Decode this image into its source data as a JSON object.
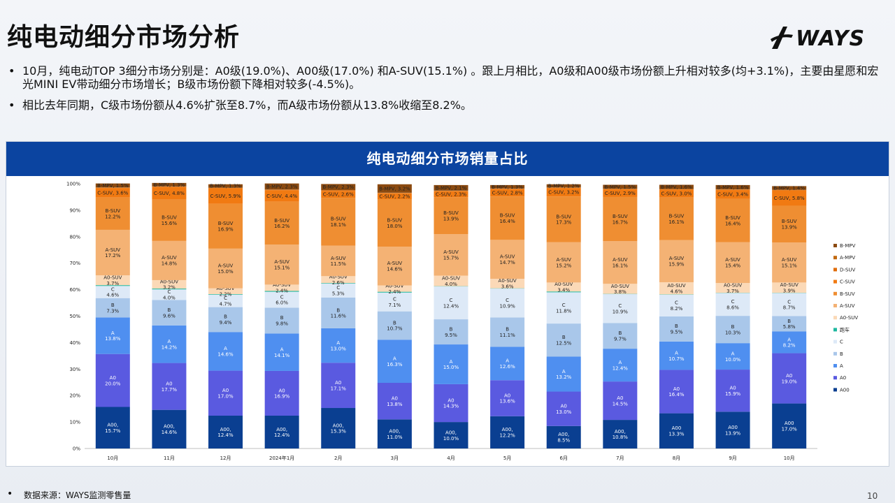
{
  "page": {
    "title": "纯电动细分市场分析",
    "logo_text": "WAYS",
    "bullets": [
      "10月，纯电动TOP 3细分市场分别是：A0级(19.0%)、A00级(17.0%) 和A-SUV(15.1%) 。跟上月相比，A0级和A00级市场份额上升相对较多(均+3.1%)，主要由星愿和宏光MINI EV带动细分市场增长；B级市场份额下降相对较多(-4.5%)。",
      "相比去年同期，C级市场份额从4.6%扩张至8.7%，而A级市场份额从13.8%收缩至8.2%。"
    ],
    "footnote": "数据来源：WAYS监测零售量",
    "page_number": "10"
  },
  "chart_data": {
    "type": "bar",
    "stacked": true,
    "title": "纯电动细分市场销量占比",
    "categories": [
      "10月",
      "11月",
      "12月",
      "2024年1月",
      "2月",
      "3月",
      "4月",
      "5月",
      "6月",
      "7月",
      "8月",
      "9月",
      "10月"
    ],
    "ylim": [
      0,
      100
    ],
    "yticks": [
      "0%",
      "10%",
      "20%",
      "30%",
      "40%",
      "50%",
      "60%",
      "70%",
      "80%",
      "90%",
      "100%"
    ],
    "legend_position": "right",
    "series": [
      {
        "name": "A00",
        "color": "#0a3f91",
        "values": [
          15.7,
          14.6,
          12.4,
          12.4,
          15.3,
          11.0,
          10.0,
          12.2,
          8.5,
          10.8,
          13.3,
          13.9,
          17.0
        ],
        "labels": [
          "A00,\n15.7%",
          "A00,\n14.6%",
          "A00,\n12.4%",
          "A00,\n12.4%",
          "A00,\n15.3%",
          "A00,\n11.0%",
          "A00,\n10.0%",
          "A00,\n12.2%",
          "A00,\n8.5%",
          "A00,\n10.8%",
          "A00\n13.3%",
          "A00\n13.9%",
          "A00\n17.0%"
        ]
      },
      {
        "name": "A0",
        "color": "#5a5ae0",
        "values": [
          20.0,
          17.7,
          17.0,
          16.9,
          17.1,
          13.8,
          14.3,
          13.6,
          13.0,
          14.5,
          16.4,
          15.9,
          19.0
        ],
        "labels": [
          "A0\n20.0%",
          "A0\n17.7%",
          "A0\n17.0%",
          "A0\n16.9%",
          "A0\n17.1%",
          "A0\n13.8%",
          "A0\n14.3%",
          "A0\n13.6%",
          "A0\n13.0%",
          "A0\n14.5%",
          "A0\n16.4%",
          "A0\n15.9%",
          "A0\n19.0%"
        ]
      },
      {
        "name": "A",
        "color": "#4f8ff0",
        "values": [
          13.8,
          14.2,
          14.6,
          14.1,
          13.0,
          16.3,
          15.0,
          12.6,
          13.2,
          12.4,
          10.7,
          10.0,
          8.2
        ],
        "labels": [
          "A\n13.8%",
          "A\n14.2%",
          "A\n14.6%",
          "A\n14.1%",
          "A\n13.0%",
          "A\n16.3%",
          "A\n15.0%",
          "A\n12.6%",
          "A\n13.2%",
          "A\n12.4%",
          "A\n10.7%",
          "A\n10.0%",
          "A\n8.2%"
        ]
      },
      {
        "name": "B",
        "color": "#a9c7ea",
        "values": [
          7.3,
          9.6,
          9.4,
          9.8,
          11.6,
          10.7,
          9.5,
          11.1,
          12.5,
          9.7,
          9.5,
          10.3,
          5.8
        ],
        "labels": [
          "B\n7.3%",
          "B\n9.6%",
          "B\n9.4%",
          "B\n9.8%",
          "B\n11.6%",
          "B\n10.7%",
          "B\n9.5%",
          "B\n11.1%",
          "B\n12.5%",
          "B\n9.7%",
          "B\n9.5%",
          "B\n10.3%",
          "B\n5.8%"
        ]
      },
      {
        "name": "C",
        "color": "#dde9f7",
        "values": [
          4.6,
          4.0,
          4.7,
          6.0,
          5.3,
          7.1,
          12.4,
          10.9,
          11.8,
          10.9,
          8.2,
          8.6,
          8.7
        ],
        "labels": [
          "C\n4.6%",
          "C\n4.0%",
          "C\n4.7%",
          "C\n6.0%",
          "C\n5.3%",
          "C\n7.1%",
          "C\n12.4%",
          "C\n10.9%",
          "C\n11.8%",
          "C\n10.9%",
          "C\n8.2%",
          "C\n8.6%",
          "C\n8.7%"
        ]
      },
      {
        "name": "跑车",
        "color": "#1fb8a0",
        "values": [
          0.3,
          0.3,
          0.2,
          0.3,
          0.2,
          0.3,
          0.1,
          0.1,
          0.3,
          0.1,
          0.1,
          0.1,
          0.1
        ],
        "labels": [
          "",
          "",
          "",
          "",
          "",
          "",
          "",
          "",
          "",
          "",
          "",
          "",
          ""
        ]
      },
      {
        "name": "A0-SUV",
        "color": "#fbd9b7",
        "values": [
          3.7,
          3.2,
          2.2,
          2.4,
          2.6,
          2.4,
          4.0,
          3.6,
          3.4,
          3.8,
          4.6,
          3.7,
          3.9
        ],
        "labels": [
          "A0-SUV\n3.7%",
          "A0-SUV\n3.2%",
          "A0-SUV\n2.2%",
          "A0-SUV\n2.4%",
          "A0-SUV\n2.6%",
          "A0-SUV\n2.4%",
          "A0-SUV\n4.0%",
          "A0-SUV\n3.6%",
          "A0-SUV\n3.4%",
          "A0-SUV\n3.8%",
          "A0-SUV\n4.6%",
          "A0-SUV\n3.7%",
          "A0-SUV\n3.9%"
        ]
      },
      {
        "name": "A-SUV",
        "color": "#f4b274",
        "values": [
          17.2,
          14.8,
          15.0,
          15.1,
          11.5,
          14.6,
          15.7,
          14.7,
          15.2,
          16.1,
          15.9,
          15.4,
          15.1
        ],
        "labels": [
          "A-SUV\n17.2%",
          "A-SUV\n14.8%",
          "A-SUV\n15.0%",
          "A-SUV\n15.1%",
          "A-SUV\n11.5%",
          "A-SUV\n14.6%",
          "A-SUV\n15.7%",
          "A-SUV\n14.7%",
          "A-SUV\n15.2%",
          "A-SUV\n16.1%",
          "A-SUV\n15.9%",
          "A-SUV\n15.4%",
          "A-SUV\n15.1%"
        ]
      },
      {
        "name": "B-SUV",
        "color": "#ef8e32",
        "values": [
          12.2,
          15.6,
          16.9,
          16.2,
          18.1,
          18.0,
          13.9,
          16.4,
          17.3,
          16.7,
          16.1,
          16.4,
          13.9
        ],
        "labels": [
          "B-SUV\n12.2%",
          "B-SUV\n15.6%",
          "B-SUV\n16.9%",
          "B-SUV\n16.2%",
          "B-SUV\n18.1%",
          "B-SUV\n18.0%",
          "B-SUV\n13.9%",
          "B-SUV\n16.4%",
          "B-SUV\n17.3%",
          "B-SUV\n16.7%",
          "B-SUV\n16.1%",
          "B-SUV\n16.4%",
          "B-SUV\n13.9%"
        ]
      },
      {
        "name": "C-SUV",
        "color": "#f17a12",
        "values": [
          3.6,
          4.8,
          5.9,
          4.4,
          2.6,
          2.2,
          2.3,
          2.8,
          3.2,
          2.9,
          3.0,
          3.4,
          5.8
        ],
        "labels": [
          "C-SUV, 3.6%",
          "C-SUV, 4.8%",
          "C-SUV, 5.9%",
          "C-SUV, 4.4%",
          "C-SUV, 2.6%",
          "C-SUV, 2.2%",
          "C-SUV, 2.3%",
          "C-SUV, 2.8%",
          "C-SUV, 3.2%",
          "C-SUV, 2.9%",
          "C-SUV, 3.0%",
          "C-SUV, 3.4%",
          "C-SUV, 5.8%"
        ]
      },
      {
        "name": "D-SUV",
        "color": "#e06c0a",
        "values": [
          0.1,
          0.1,
          0.1,
          0.1,
          0.2,
          0.1,
          0.1,
          0.1,
          0.1,
          0.1,
          0.1,
          0.1,
          0.1
        ],
        "labels": [
          "",
          "",
          "",
          "",
          "",
          "",
          "",
          "",
          "",
          "",
          "",
          "",
          ""
        ]
      },
      {
        "name": "A-MPV",
        "color": "#c2690f",
        "values": [
          0.1,
          0.1,
          0.1,
          0.1,
          0.1,
          0.1,
          0.1,
          0.1,
          0.1,
          0.1,
          0.1,
          0.1,
          0.1
        ],
        "labels": [
          "",
          "",
          "",
          "",
          "",
          "",
          "",
          "",
          "",
          "",
          "",
          "",
          ""
        ]
      },
      {
        "name": "B-MPV",
        "color": "#8b4a10",
        "values": [
          1.5,
          1.3,
          1.3,
          2.3,
          2.3,
          3.2,
          2.1,
          1.3,
          1.2,
          1.5,
          1.6,
          1.6,
          1.4
        ],
        "labels": [
          "B-MPV, 1.5%",
          "B-MPV, 1.3%",
          "B-MPV, 1.3%",
          "B-MPV, 2.3%",
          "B-MPV, 2.3%",
          "B-MPV, 3.2%",
          "B-MPV, 2.1%",
          "B-MPV, 1.3%",
          "B-MPV, 1.2%",
          "B-MPV, 1.5%",
          "B-MPV, 1.6%",
          "B-MPV, 1.6%",
          "B-MPV, 1.4%"
        ]
      }
    ],
    "legend_order": [
      "B-MPV",
      "A-MPV",
      "D-SUV",
      "C-SUV",
      "B-SUV",
      "A-SUV",
      "A0-SUV",
      "跑车",
      "C",
      "B",
      "A",
      "A0",
      "A00"
    ]
  }
}
